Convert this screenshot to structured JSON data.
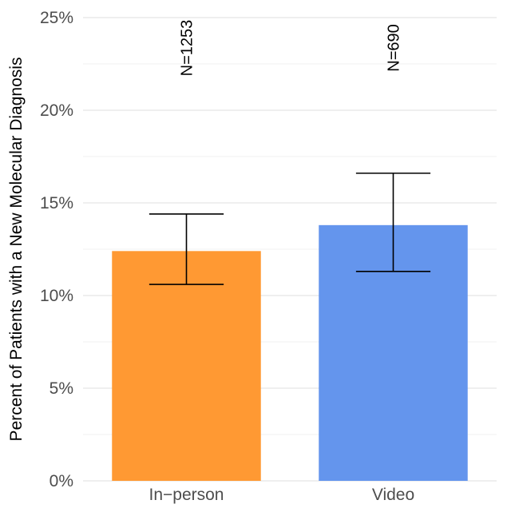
{
  "chart_data": {
    "type": "bar",
    "categories": [
      "In−person",
      "Video"
    ],
    "values": [
      12.4,
      13.8
    ],
    "error_low": [
      10.6,
      11.3
    ],
    "error_high": [
      14.4,
      16.6
    ],
    "bar_labels": [
      "N=1253",
      "N=690"
    ],
    "colors": [
      "#FF9933",
      "#6495ED"
    ],
    "title": "",
    "xlabel": "",
    "ylabel": "Percent of Patients with a New Molecular Diagnosis",
    "ylim": [
      0,
      25
    ],
    "yticks": [
      0,
      5,
      10,
      15,
      20,
      25
    ],
    "ytick_labels": [
      "0%",
      "5%",
      "10%",
      "15%",
      "20%",
      "25%"
    ],
    "grid": true,
    "legend": "none"
  }
}
